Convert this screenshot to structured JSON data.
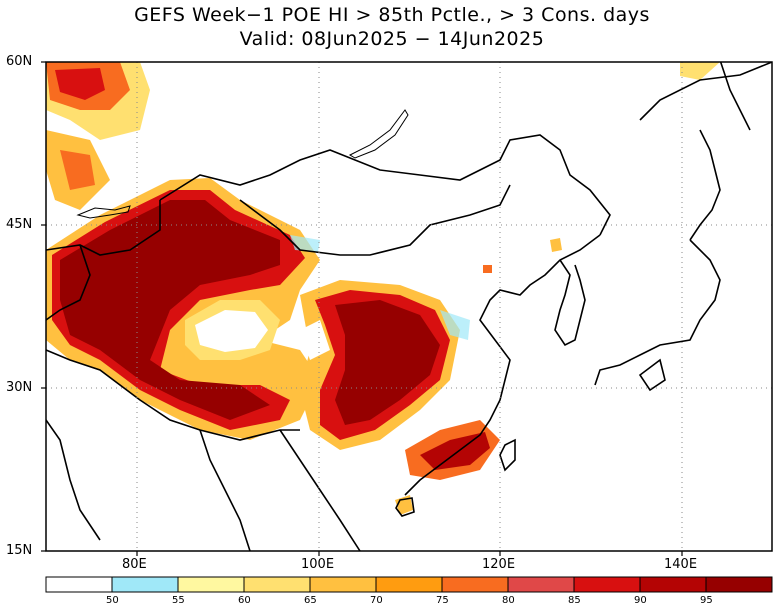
{
  "title": {
    "line1": "GEFS Week−1 POE HI > 85th Pctle., > 3 Cons. days",
    "line2": "Valid: 08Jun2025 − 14Jun2025"
  },
  "axes": {
    "lat_labels": [
      "60N",
      "45N",
      "30N",
      "15N"
    ],
    "lon_labels": [
      "80E",
      "100E",
      "120E",
      "140E"
    ],
    "lat_range": [
      15,
      60
    ],
    "lon_range": [
      70,
      150
    ],
    "grid": "dotted"
  },
  "legend": {
    "labels": [
      "50",
      "55",
      "60",
      "65",
      "70",
      "75",
      "80",
      "85",
      "90",
      "95"
    ],
    "colors": [
      "#ffffff",
      "#a0e8f8",
      "#fff8a0",
      "#ffe070",
      "#ffc040",
      "#ff9c10",
      "#f86c20",
      "#e04848",
      "#d81010",
      "#b40404",
      "#960000"
    ]
  }
}
